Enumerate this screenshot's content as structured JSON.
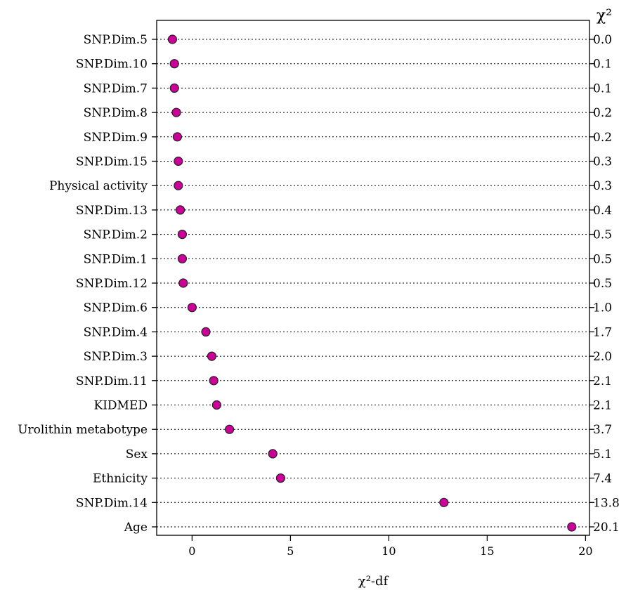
{
  "chart_data": {
    "type": "scatter",
    "style": "dot-plot",
    "xlabel": "χ²-df",
    "right_header": "χ²",
    "xlim": [
      -1.8,
      20.2
    ],
    "xticks": [
      0,
      5,
      10,
      15,
      20
    ],
    "grid": "dotted horizontal guide per row",
    "colors": {
      "point_fill": "#cc0099",
      "point_stroke": "#222222"
    },
    "rows": [
      {
        "label": "SNP.Dim.5",
        "x": -1.0,
        "chi2": "0.0"
      },
      {
        "label": "SNP.Dim.10",
        "x": -0.9,
        "chi2": "0.1"
      },
      {
        "label": "SNP.Dim.7",
        "x": -0.9,
        "chi2": "0.1"
      },
      {
        "label": "SNP.Dim.8",
        "x": -0.8,
        "chi2": "0.2"
      },
      {
        "label": "SNP.Dim.9",
        "x": -0.75,
        "chi2": "0.2"
      },
      {
        "label": "SNP.Dim.15",
        "x": -0.7,
        "chi2": "0.3"
      },
      {
        "label": "Physical activity",
        "x": -0.7,
        "chi2": "0.3"
      },
      {
        "label": "SNP.Dim.13",
        "x": -0.6,
        "chi2": "0.4"
      },
      {
        "label": "SNP.Dim.2",
        "x": -0.5,
        "chi2": "0.5"
      },
      {
        "label": "SNP.Dim.1",
        "x": -0.5,
        "chi2": "0.5"
      },
      {
        "label": "SNP.Dim.12",
        "x": -0.45,
        "chi2": "0.5"
      },
      {
        "label": "SNP.Dim.6",
        "x": 0.0,
        "chi2": "1.0"
      },
      {
        "label": "SNP.Dim.4",
        "x": 0.7,
        "chi2": "1.7"
      },
      {
        "label": "SNP.Dim.3",
        "x": 1.0,
        "chi2": "2.0"
      },
      {
        "label": "SNP.Dim.11",
        "x": 1.1,
        "chi2": "2.1"
      },
      {
        "label": "KIDMED",
        "x": 1.25,
        "chi2": "2.1"
      },
      {
        "label": "Urolithin metabotype",
        "x": 1.9,
        "chi2": "3.7"
      },
      {
        "label": "Sex",
        "x": 4.1,
        "chi2": "5.1"
      },
      {
        "label": "Ethnicity",
        "x": 4.5,
        "chi2": "7.4"
      },
      {
        "label": "SNP.Dim.14",
        "x": 12.8,
        "chi2": "13.8"
      },
      {
        "label": "Age",
        "x": 19.3,
        "chi2": "20.1"
      }
    ]
  }
}
